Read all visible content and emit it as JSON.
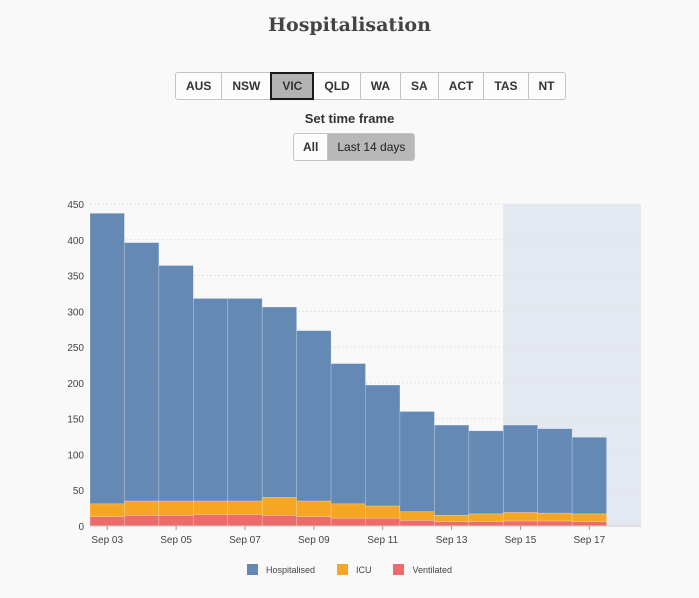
{
  "header": {
    "title": "Hospitalisation"
  },
  "state_tabs": [
    "AUS",
    "NSW",
    "VIC",
    "QLD",
    "WA",
    "SA",
    "ACT",
    "TAS",
    "NT"
  ],
  "active_state": "VIC",
  "timeframe": {
    "label": "Set time frame",
    "options": [
      "All",
      "Last 14 days"
    ],
    "active": "Last 14 days"
  },
  "colors": {
    "hospitalised": "#6489b5",
    "icu": "#f5a623",
    "ventilated": "#ee6b6b",
    "highlight": "#e4e8f1"
  },
  "chart_data": {
    "type": "bar",
    "stacked": true,
    "categories": [
      "Sep 03",
      "Sep 04",
      "Sep 05",
      "Sep 06",
      "Sep 07",
      "Sep 08",
      "Sep 09",
      "Sep 10",
      "Sep 11",
      "Sep 12",
      "Sep 13",
      "Sep 14",
      "Sep 15",
      "Sep 16",
      "Sep 17"
    ],
    "tick_labels": [
      "Sep 03",
      "Sep 05",
      "Sep 07",
      "Sep 09",
      "Sep 11",
      "Sep 13",
      "Sep 15",
      "Sep 17"
    ],
    "series": [
      {
        "name": "Hospitalised",
        "values": [
          406,
          361,
          329,
          283,
          283,
          266,
          238,
          196,
          169,
          140,
          126,
          116,
          122,
          118,
          107
        ]
      },
      {
        "name": "ICU",
        "values": [
          18,
          20,
          20,
          19,
          19,
          25,
          22,
          20,
          17,
          12,
          9,
          11,
          12,
          11,
          11
        ]
      },
      {
        "name": "Ventilated",
        "values": [
          13,
          15,
          15,
          16,
          16,
          15,
          13,
          11,
          11,
          8,
          6,
          6,
          7,
          7,
          6
        ]
      }
    ],
    "highlight_range": [
      "Sep 15",
      "Sep 18"
    ],
    "ylim": [
      0,
      450
    ],
    "yticks": [
      0,
      50,
      100,
      150,
      200,
      250,
      300,
      350,
      400,
      450
    ],
    "grid": true,
    "legend": "bottom"
  }
}
